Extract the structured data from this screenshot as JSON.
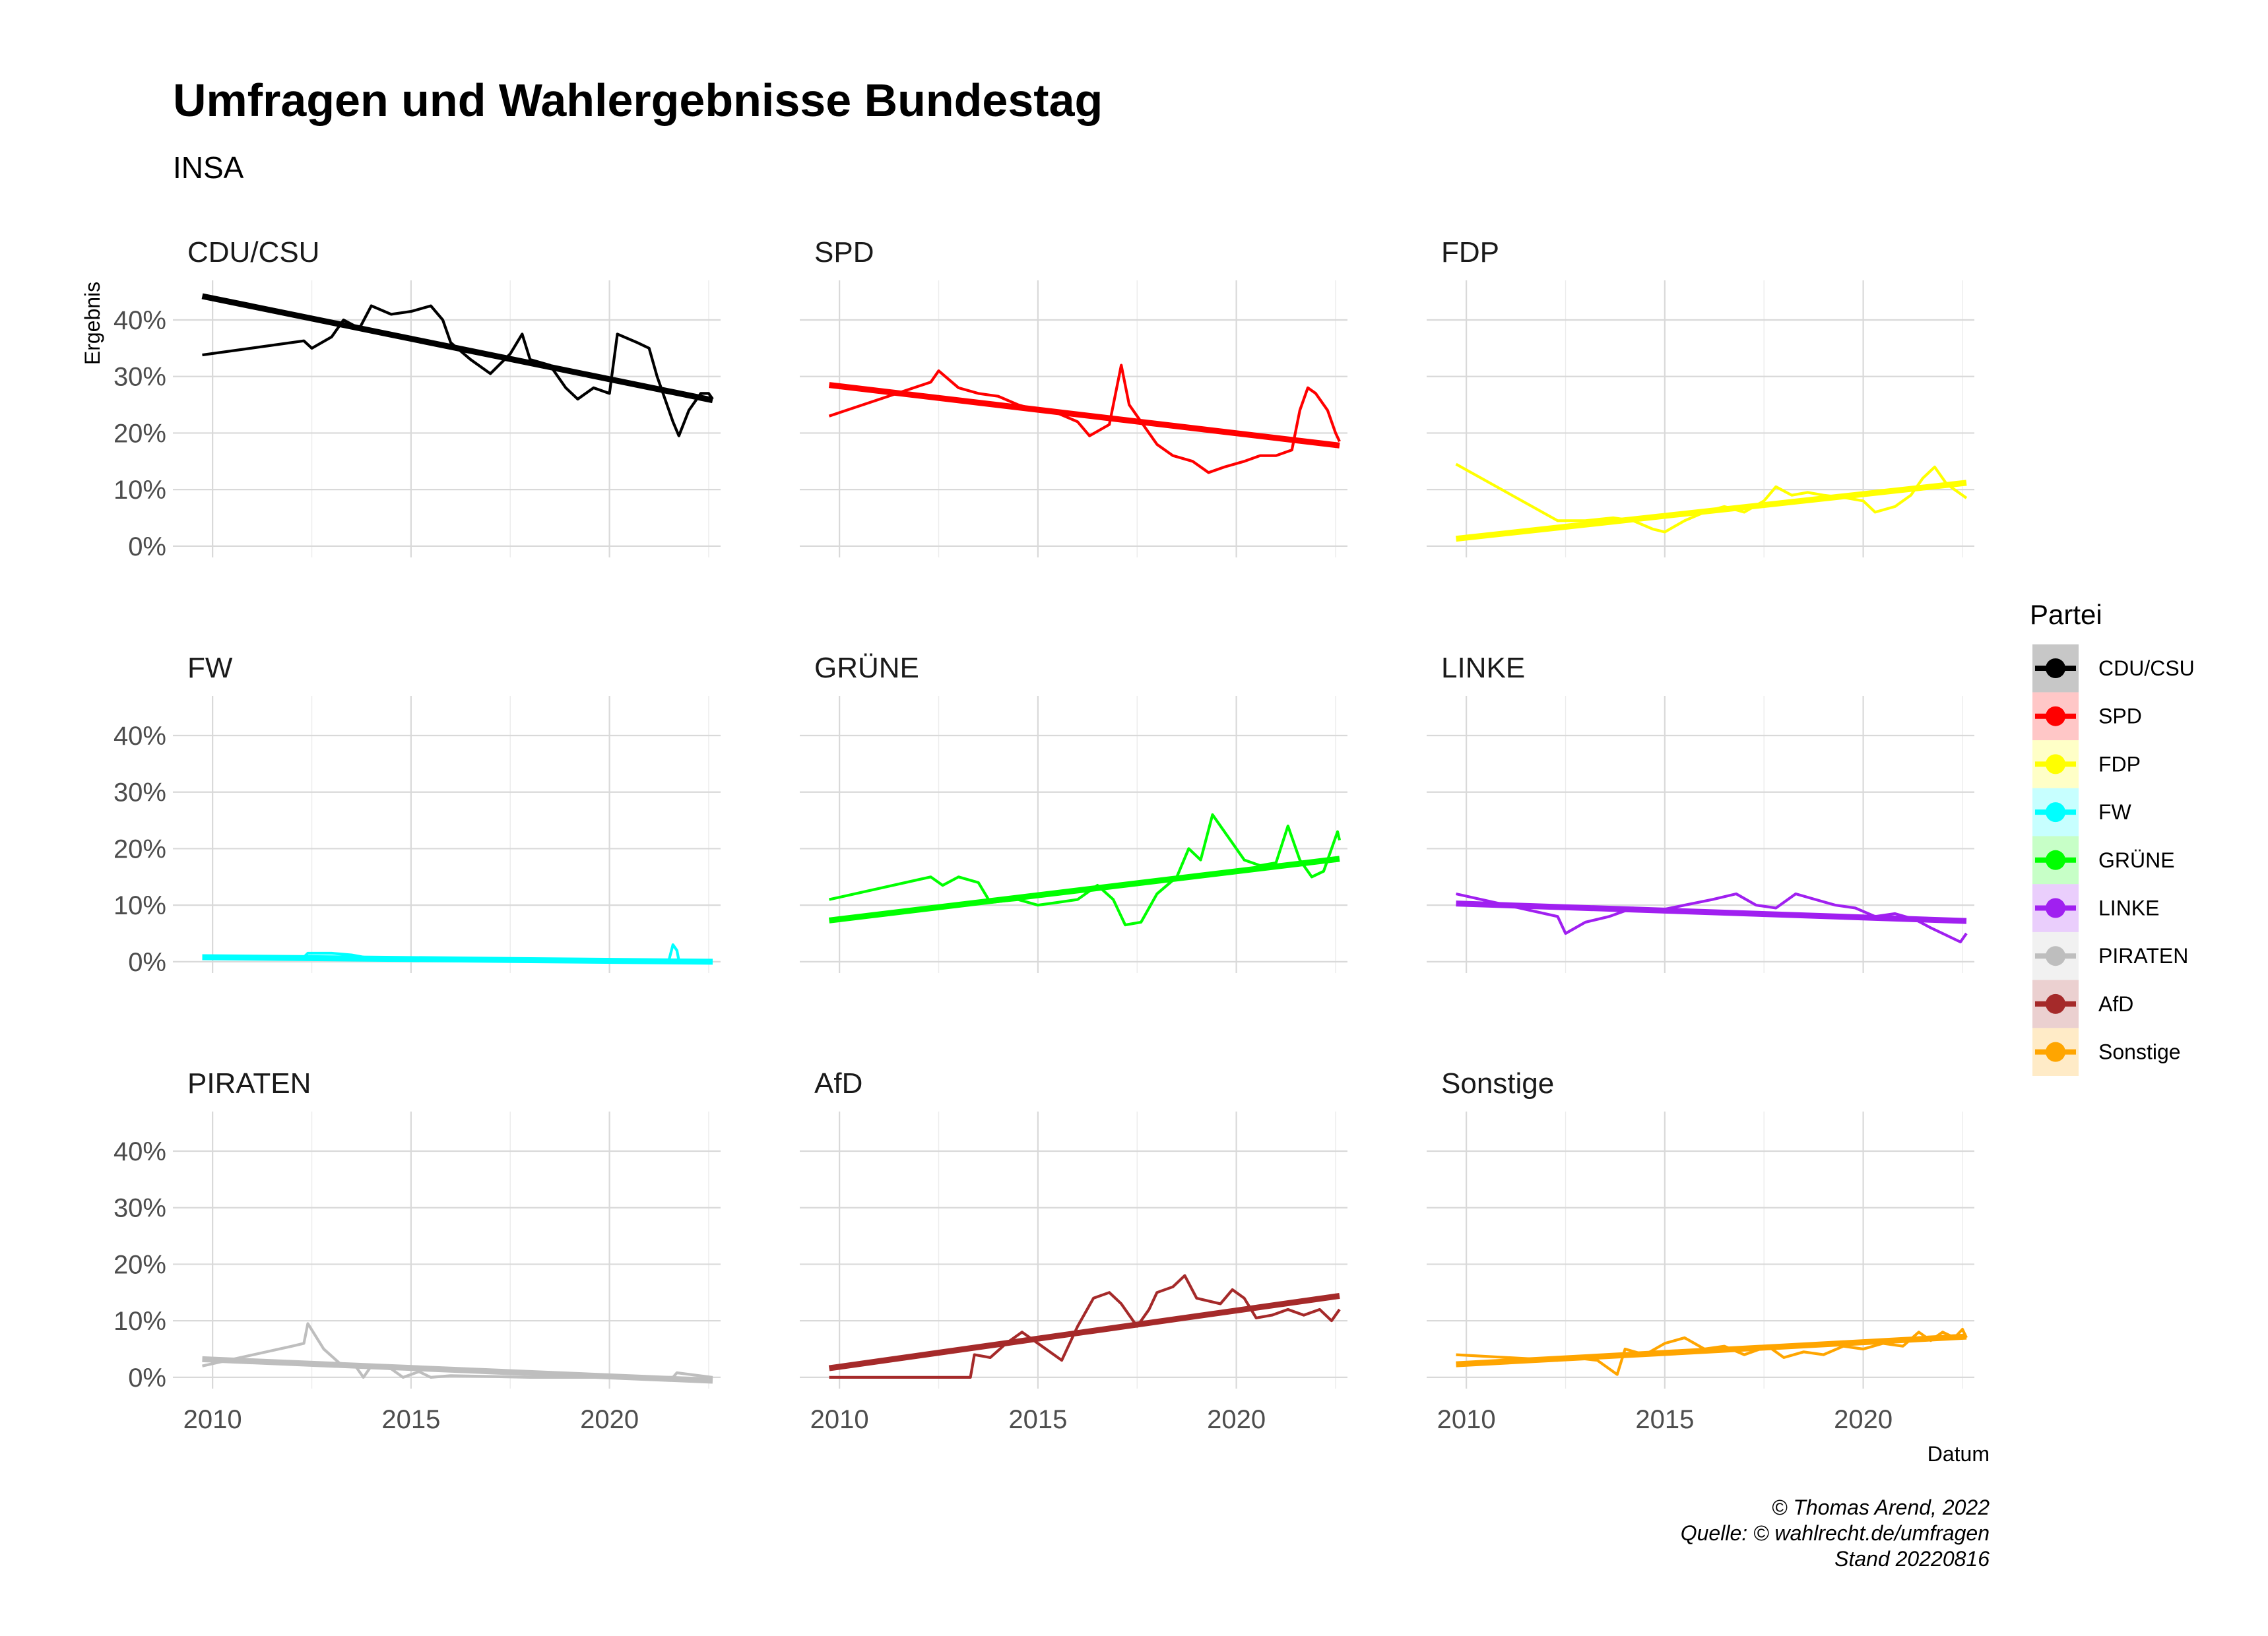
{
  "title": "Umfragen und Wahlergebnisse Bundestag",
  "subtitle": "INSA",
  "ylabel": "Ergebnis",
  "xlabel": "Datum",
  "legend": {
    "title": "Partei"
  },
  "caption": [
    "© Thomas Arend, 2022",
    "Quelle: © wahlrecht.de/umfragen",
    "Stand 20220816"
  ],
  "chart_data": {
    "type": "line",
    "facets": 9,
    "x_unit": "year",
    "xlim": [
      2009.0,
      2022.8
    ],
    "xticks": [
      2010,
      2015,
      2020
    ],
    "xtick_labels": [
      "2010",
      "2015",
      "2020"
    ],
    "ylim": [
      -2,
      47
    ],
    "yticks": [
      0,
      10,
      20,
      30,
      40
    ],
    "ytick_labels": [
      "0%",
      "10%",
      "20%",
      "30%",
      "40%"
    ],
    "grid": true,
    "legend_position": "right",
    "series": [
      {
        "name": "CDU/CSU",
        "color": "#000000",
        "points": [
          [
            2009.74,
            33.8
          ],
          [
            2012.3,
            36.3
          ],
          [
            2012.5,
            35
          ],
          [
            2013.0,
            37
          ],
          [
            2013.3,
            40
          ],
          [
            2013.7,
            38.5
          ],
          [
            2014.0,
            42.5
          ],
          [
            2014.5,
            41
          ],
          [
            2015.0,
            41.5
          ],
          [
            2015.5,
            42.5
          ],
          [
            2015.8,
            40
          ],
          [
            2016.0,
            36
          ],
          [
            2016.5,
            33
          ],
          [
            2017.0,
            30.5
          ],
          [
            2017.5,
            34
          ],
          [
            2017.8,
            37.5
          ],
          [
            2018.0,
            33
          ],
          [
            2018.5,
            32
          ],
          [
            2018.9,
            28
          ],
          [
            2019.2,
            26
          ],
          [
            2019.6,
            28
          ],
          [
            2020.0,
            27
          ],
          [
            2020.2,
            37.5
          ],
          [
            2020.7,
            36
          ],
          [
            2021.0,
            35
          ],
          [
            2021.2,
            30
          ],
          [
            2021.6,
            22
          ],
          [
            2021.75,
            19.5
          ],
          [
            2022.0,
            24
          ],
          [
            2022.3,
            27
          ],
          [
            2022.5,
            27
          ],
          [
            2022.6,
            26
          ]
        ],
        "trend": [
          [
            2009.74,
            44.2
          ],
          [
            2022.6,
            25.8
          ]
        ]
      },
      {
        "name": "SPD",
        "color": "#ff0000",
        "points": [
          [
            2009.74,
            23
          ],
          [
            2012.3,
            29
          ],
          [
            2012.5,
            31
          ],
          [
            2013.0,
            28
          ],
          [
            2013.5,
            27
          ],
          [
            2014.0,
            26.5
          ],
          [
            2014.5,
            25
          ],
          [
            2015.0,
            24
          ],
          [
            2015.5,
            23.5
          ],
          [
            2016.0,
            22
          ],
          [
            2016.3,
            19.5
          ],
          [
            2016.8,
            21.5
          ],
          [
            2017.1,
            32
          ],
          [
            2017.3,
            25
          ],
          [
            2017.6,
            22
          ],
          [
            2018.0,
            18
          ],
          [
            2018.4,
            16
          ],
          [
            2018.9,
            15
          ],
          [
            2019.3,
            13
          ],
          [
            2019.7,
            14
          ],
          [
            2020.2,
            15
          ],
          [
            2020.6,
            16
          ],
          [
            2021.0,
            16
          ],
          [
            2021.4,
            17
          ],
          [
            2021.6,
            24
          ],
          [
            2021.8,
            28
          ],
          [
            2022.0,
            27
          ],
          [
            2022.3,
            24
          ],
          [
            2022.5,
            20
          ],
          [
            2022.6,
            18.5
          ]
        ],
        "trend": [
          [
            2009.74,
            28.5
          ],
          [
            2022.6,
            17.8
          ]
        ]
      },
      {
        "name": "FDP",
        "color": "#ffff00",
        "points": [
          [
            2009.74,
            14.5
          ],
          [
            2012.3,
            4.5
          ],
          [
            2013.0,
            4.5
          ],
          [
            2013.7,
            5
          ],
          [
            2014.2,
            4.5
          ],
          [
            2014.7,
            3
          ],
          [
            2015.0,
            2.5
          ],
          [
            2015.5,
            4.5
          ],
          [
            2016.0,
            6
          ],
          [
            2016.5,
            7
          ],
          [
            2017.0,
            6
          ],
          [
            2017.5,
            8
          ],
          [
            2017.8,
            10.5
          ],
          [
            2018.2,
            9
          ],
          [
            2018.6,
            9.5
          ],
          [
            2019.0,
            9
          ],
          [
            2019.6,
            8.5
          ],
          [
            2020.0,
            8
          ],
          [
            2020.3,
            6
          ],
          [
            2020.8,
            7
          ],
          [
            2021.2,
            9
          ],
          [
            2021.5,
            12
          ],
          [
            2021.8,
            14
          ],
          [
            2022.1,
            11
          ],
          [
            2022.5,
            9
          ],
          [
            2022.6,
            8.5
          ]
        ],
        "trend": [
          [
            2009.74,
            1.3
          ],
          [
            2022.6,
            11.2
          ]
        ]
      },
      {
        "name": "FW",
        "color": "#00ffff",
        "points": [
          [
            2009.74,
            0.8
          ],
          [
            2012.3,
            0.8
          ],
          [
            2012.4,
            1.5
          ],
          [
            2013.0,
            1.5
          ],
          [
            2013.5,
            1.2
          ],
          [
            2013.9,
            0.7
          ],
          [
            2015.0,
            0.6
          ],
          [
            2017.0,
            0.5
          ],
          [
            2019.0,
            0.4
          ],
          [
            2021.0,
            0.3
          ],
          [
            2021.5,
            0.3
          ],
          [
            2021.6,
            3
          ],
          [
            2021.7,
            2
          ],
          [
            2021.75,
            0.2
          ],
          [
            2022.6,
            0.1
          ]
        ],
        "trend": [
          [
            2009.74,
            0.8
          ],
          [
            2022.6,
            0.0
          ]
        ]
      },
      {
        "name": "GRÜNE",
        "color": "#00ff00",
        "points": [
          [
            2009.74,
            11
          ],
          [
            2012.3,
            15
          ],
          [
            2012.6,
            13.5
          ],
          [
            2013.0,
            15
          ],
          [
            2013.5,
            14
          ],
          [
            2013.8,
            10.5
          ],
          [
            2014.5,
            11
          ],
          [
            2015.0,
            10
          ],
          [
            2015.5,
            10.5
          ],
          [
            2016.0,
            11
          ],
          [
            2016.5,
            13.5
          ],
          [
            2016.9,
            11
          ],
          [
            2017.2,
            6.5
          ],
          [
            2017.6,
            7
          ],
          [
            2018.0,
            12
          ],
          [
            2018.5,
            15
          ],
          [
            2018.8,
            20
          ],
          [
            2019.1,
            18
          ],
          [
            2019.4,
            26
          ],
          [
            2019.8,
            22
          ],
          [
            2020.2,
            18
          ],
          [
            2020.6,
            17
          ],
          [
            2021.0,
            17.5
          ],
          [
            2021.3,
            24
          ],
          [
            2021.6,
            18
          ],
          [
            2021.9,
            15
          ],
          [
            2022.2,
            16
          ],
          [
            2022.4,
            20
          ],
          [
            2022.55,
            23
          ],
          [
            2022.6,
            21.5
          ]
        ],
        "trend": [
          [
            2009.74,
            7.3
          ],
          [
            2022.6,
            18.2
          ]
        ]
      },
      {
        "name": "LINKE",
        "color": "#a020f0",
        "points": [
          [
            2009.74,
            12
          ],
          [
            2012.3,
            8
          ],
          [
            2012.5,
            5
          ],
          [
            2013.0,
            7
          ],
          [
            2013.6,
            8
          ],
          [
            2014.2,
            9.5
          ],
          [
            2014.8,
            9
          ],
          [
            2015.5,
            10
          ],
          [
            2016.2,
            11
          ],
          [
            2016.8,
            12
          ],
          [
            2017.3,
            10
          ],
          [
            2017.8,
            9.5
          ],
          [
            2018.3,
            12
          ],
          [
            2018.8,
            11
          ],
          [
            2019.3,
            10
          ],
          [
            2019.8,
            9.5
          ],
          [
            2020.3,
            8
          ],
          [
            2020.8,
            8.5
          ],
          [
            2021.3,
            7.5
          ],
          [
            2021.7,
            6
          ],
          [
            2022.0,
            5
          ],
          [
            2022.3,
            4
          ],
          [
            2022.45,
            3.5
          ],
          [
            2022.6,
            5
          ]
        ],
        "trend": [
          [
            2009.74,
            10.3
          ],
          [
            2022.6,
            7.2
          ]
        ]
      },
      {
        "name": "PIRATEN",
        "color": "#bebebe",
        "points": [
          [
            2009.74,
            2
          ],
          [
            2012.0,
            5.5
          ],
          [
            2012.3,
            6
          ],
          [
            2012.4,
            9.5
          ],
          [
            2012.8,
            5
          ],
          [
            2013.2,
            2.5
          ],
          [
            2013.6,
            2
          ],
          [
            2013.8,
            0
          ],
          [
            2014.0,
            2
          ],
          [
            2014.5,
            1.5
          ],
          [
            2014.8,
            0
          ],
          [
            2015.2,
            1
          ],
          [
            2015.5,
            0
          ],
          [
            2016.0,
            0.3
          ],
          [
            2018.0,
            0
          ],
          [
            2020.0,
            0
          ],
          [
            2021.6,
            0
          ],
          [
            2021.7,
            0.8
          ],
          [
            2022.6,
            0
          ]
        ],
        "trend": [
          [
            2009.74,
            3.2
          ],
          [
            2022.6,
            -0.6
          ]
        ]
      },
      {
        "name": "AfD",
        "color": "#a52a2a",
        "points": [
          [
            2009.74,
            0
          ],
          [
            2013.3,
            0
          ],
          [
            2013.4,
            4
          ],
          [
            2013.8,
            3.5
          ],
          [
            2014.2,
            6
          ],
          [
            2014.6,
            8
          ],
          [
            2015.0,
            6
          ],
          [
            2015.6,
            3
          ],
          [
            2016.0,
            9
          ],
          [
            2016.4,
            14
          ],
          [
            2016.8,
            15
          ],
          [
            2017.1,
            13
          ],
          [
            2017.5,
            9
          ],
          [
            2017.8,
            12
          ],
          [
            2018.0,
            15
          ],
          [
            2018.4,
            16
          ],
          [
            2018.7,
            18
          ],
          [
            2019.0,
            14
          ],
          [
            2019.6,
            13
          ],
          [
            2019.9,
            15.5
          ],
          [
            2020.2,
            14
          ],
          [
            2020.5,
            10.5
          ],
          [
            2020.9,
            11
          ],
          [
            2021.3,
            12
          ],
          [
            2021.7,
            11
          ],
          [
            2022.1,
            12
          ],
          [
            2022.4,
            10
          ],
          [
            2022.6,
            12
          ]
        ],
        "trend": [
          [
            2009.74,
            1.6
          ],
          [
            2022.6,
            14.4
          ]
        ]
      },
      {
        "name": "Sonstige",
        "color": "#ffa500",
        "points": [
          [
            2009.74,
            4
          ],
          [
            2012.3,
            3
          ],
          [
            2012.7,
            3.5
          ],
          [
            2013.3,
            3
          ],
          [
            2013.8,
            0.5
          ],
          [
            2014.0,
            5
          ],
          [
            2014.5,
            4
          ],
          [
            2015.0,
            6
          ],
          [
            2015.5,
            7
          ],
          [
            2016.0,
            5
          ],
          [
            2016.5,
            5.5
          ],
          [
            2017.0,
            4
          ],
          [
            2017.6,
            5.5
          ],
          [
            2018.0,
            3.5
          ],
          [
            2018.5,
            4.5
          ],
          [
            2019.0,
            4
          ],
          [
            2019.5,
            5.5
          ],
          [
            2020.0,
            5
          ],
          [
            2020.5,
            6
          ],
          [
            2021.0,
            5.5
          ],
          [
            2021.4,
            8
          ],
          [
            2021.7,
            6.5
          ],
          [
            2022.0,
            8
          ],
          [
            2022.3,
            7
          ],
          [
            2022.5,
            8.5
          ],
          [
            2022.6,
            7
          ]
        ],
        "trend": [
          [
            2009.74,
            2.3
          ],
          [
            2022.6,
            7.2
          ]
        ]
      }
    ]
  }
}
